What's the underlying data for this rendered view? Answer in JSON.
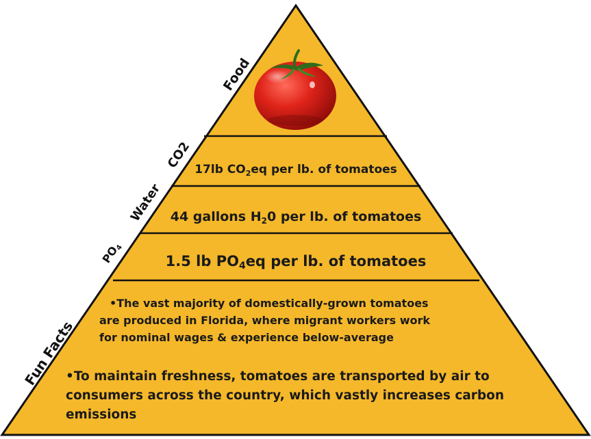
{
  "pyramid": {
    "fill_color": "#F5B82A",
    "line_color": "#111111",
    "side_labels": {
      "food": "Food",
      "co2": "CO2",
      "water": "Water",
      "po4_main": "PO",
      "po4_sub": "4",
      "fun_facts": "Fun Facts"
    },
    "food_icon": "tomato-icon",
    "co2_layer": {
      "pre": "17lb CO",
      "sub": "2",
      "post": "eq per lb. of tomatoes"
    },
    "water_layer": {
      "pre": "44 gallons H",
      "sub": "2",
      "post": "0 per lb. of tomatoes"
    },
    "po4_layer": {
      "pre": "1.5 lb PO",
      "sub": "4",
      "post": "eq per lb. of tomatoes"
    },
    "fun_facts": {
      "fact1_lines": [
        "•The vast majority of domestically-grown tomatoes",
        "are produced in Florida, where migrant workers work",
        "for nominal wages & experience below-average"
      ],
      "fact2_lines": [
        "•To maintain freshness, tomatoes are transported by air to",
        "consumers across the country, which vastly increases carbon",
        "emissions"
      ]
    }
  }
}
